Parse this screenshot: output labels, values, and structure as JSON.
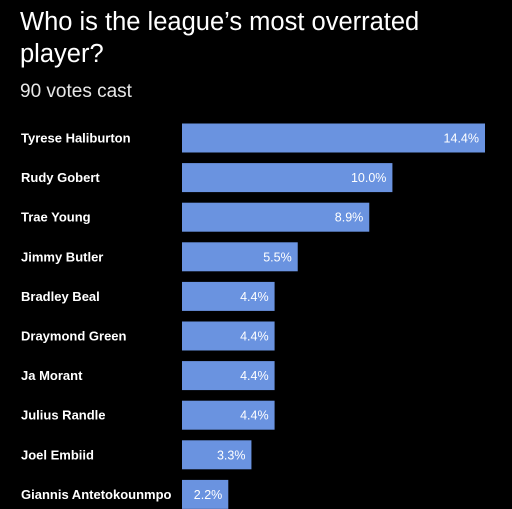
{
  "header": {
    "title": "Who is the league’s most overrated player?",
    "subtitle": "90 votes cast"
  },
  "colors": {
    "background": "#000000",
    "bar": "#6a93e0",
    "text": "#ffffff"
  },
  "chart_data": {
    "type": "bar",
    "orientation": "horizontal",
    "title": "Who is the league’s most overrated player?",
    "subtitle": "90 votes cast",
    "categories": [
      "Tyrese Haliburton",
      "Rudy Gobert",
      "Trae Young",
      "Jimmy Butler",
      "Bradley Beal",
      "Draymond Green",
      "Ja Morant",
      "Julius Randle",
      "Joel Embiid",
      "Giannis Antetokounmpo"
    ],
    "values": [
      14.4,
      10.0,
      8.9,
      5.5,
      4.4,
      4.4,
      4.4,
      4.4,
      3.3,
      2.2
    ],
    "value_labels": [
      "14.4%",
      "10.0%",
      "8.9%",
      "5.5%",
      "4.4%",
      "4.4%",
      "4.4%",
      "4.4%",
      "3.3%",
      "2.2%"
    ],
    "unit": "%",
    "grid": false,
    "legend": "none"
  }
}
